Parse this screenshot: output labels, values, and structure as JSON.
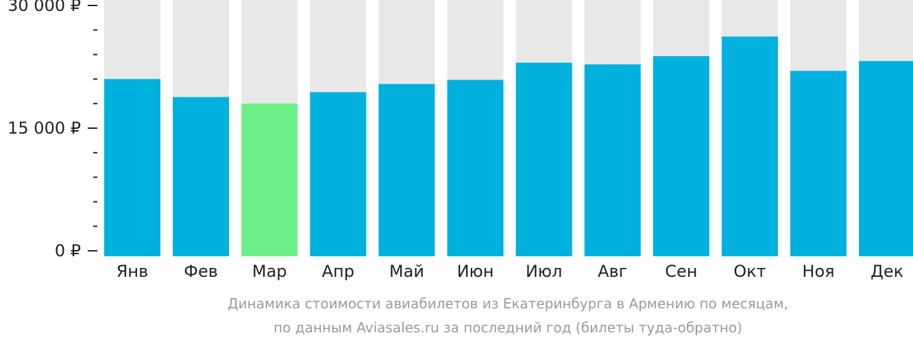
{
  "chart_data": {
    "type": "bar",
    "categories": [
      "Янв",
      "Фев",
      "Мар",
      "Апр",
      "Май",
      "Июн",
      "Июл",
      "Авг",
      "Сен",
      "Окт",
      "Ноя",
      "Дек"
    ],
    "values": [
      21000,
      18800,
      18000,
      19400,
      20400,
      20900,
      23000,
      22800,
      23800,
      26200,
      22000,
      23200
    ],
    "highlight_index": 2,
    "ylim": [
      0,
      30000
    ],
    "yticks": [
      {
        "value": 0,
        "label": "0 ₽"
      },
      {
        "value": 15000,
        "label": "15 000 ₽"
      },
      {
        "value": 30000,
        "label": "30 000 ₽"
      }
    ],
    "minor_tick_step": 3000,
    "colors": {
      "bar": "#00b0dd",
      "highlight": "#6ef088",
      "background_bar": "#e8e8e8"
    },
    "caption": [
      "Динамика стоимости авиабилетов из Екатеринбурга в Армению по месяцам,",
      "по данным Aviasales.ru за последний год (билеты туда-обратно)"
    ],
    "grid": false
  }
}
